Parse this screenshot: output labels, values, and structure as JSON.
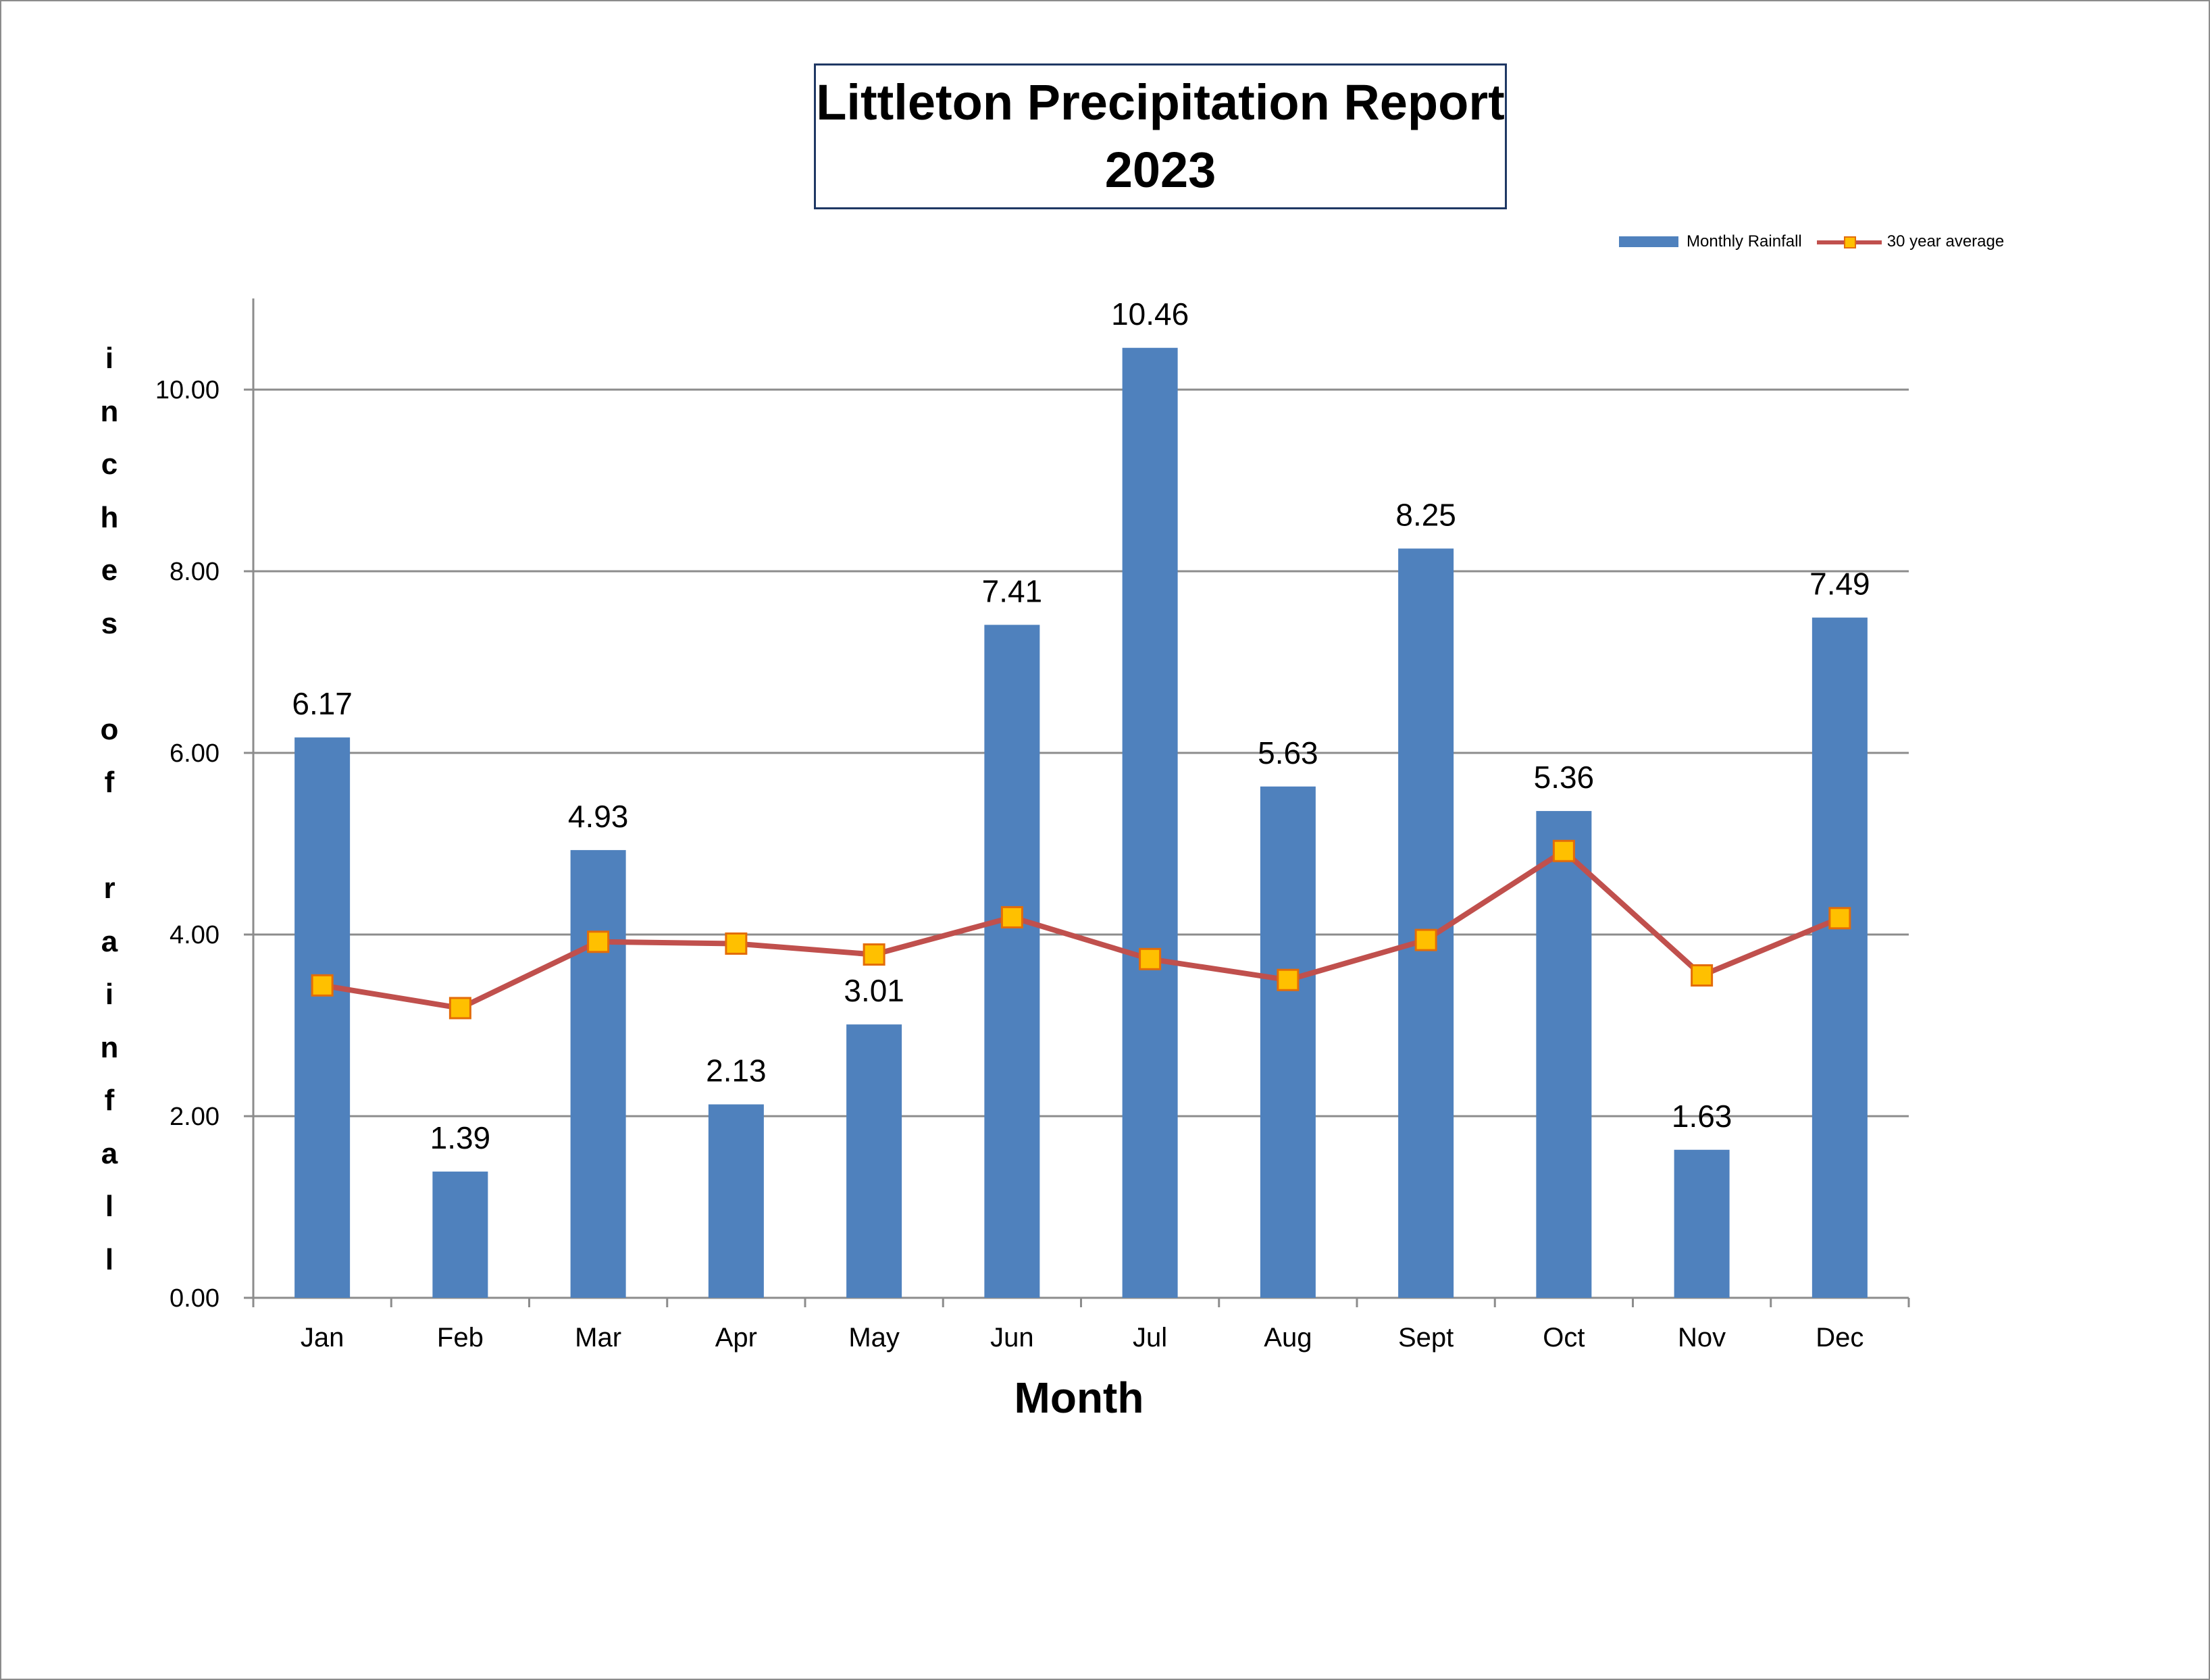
{
  "chart_data": {
    "type": "bar",
    "title": "Littleton Precipitation Report",
    "subtitle": "2023",
    "xlabel": "Month",
    "ylabel": "inches of rainfall",
    "categories": [
      "Jan",
      "Feb",
      "Mar",
      "Apr",
      "May",
      "Jun",
      "Jul",
      "Aug",
      "Sept",
      "Oct",
      "Nov",
      "Dec"
    ],
    "series": [
      {
        "name": "Monthly Rainfall",
        "type": "bar",
        "color": "#4f81bd",
        "values": [
          6.17,
          1.39,
          4.93,
          2.13,
          3.01,
          7.41,
          10.46,
          5.63,
          8.25,
          5.36,
          1.63,
          7.49
        ],
        "labels": [
          "6.17",
          "1.39",
          "4.93",
          "2.13",
          "3.01",
          "7.41",
          "10.46",
          "5.63",
          "8.25",
          "5.36",
          "1.63",
          "7.49"
        ]
      },
      {
        "name": "30 year average",
        "type": "line",
        "color": "#c0504d",
        "marker_color": "#ffc000",
        "values": [
          3.44,
          3.19,
          3.92,
          3.9,
          3.78,
          4.19,
          3.73,
          3.5,
          3.94,
          4.92,
          3.55,
          4.18
        ]
      }
    ],
    "ylim": [
      0,
      11
    ],
    "yticks": [
      0,
      2,
      4,
      6,
      8,
      10
    ],
    "ytick_labels": [
      "0.00",
      "2.00",
      "4.00",
      "6.00",
      "8.00",
      "10.00"
    ],
    "grid": true,
    "legend_position": "top-right"
  }
}
